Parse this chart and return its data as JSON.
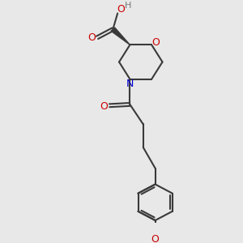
{
  "bg_color": "#e8e8e8",
  "bond_color": "#3a3a3a",
  "O_color": "#cc0000",
  "N_color": "#0000cc",
  "H_color": "#777777",
  "line_width": 1.5,
  "figsize": [
    3.0,
    3.0
  ],
  "dpi": 100,
  "xlim": [
    0,
    10
  ],
  "ylim": [
    0,
    10
  ]
}
